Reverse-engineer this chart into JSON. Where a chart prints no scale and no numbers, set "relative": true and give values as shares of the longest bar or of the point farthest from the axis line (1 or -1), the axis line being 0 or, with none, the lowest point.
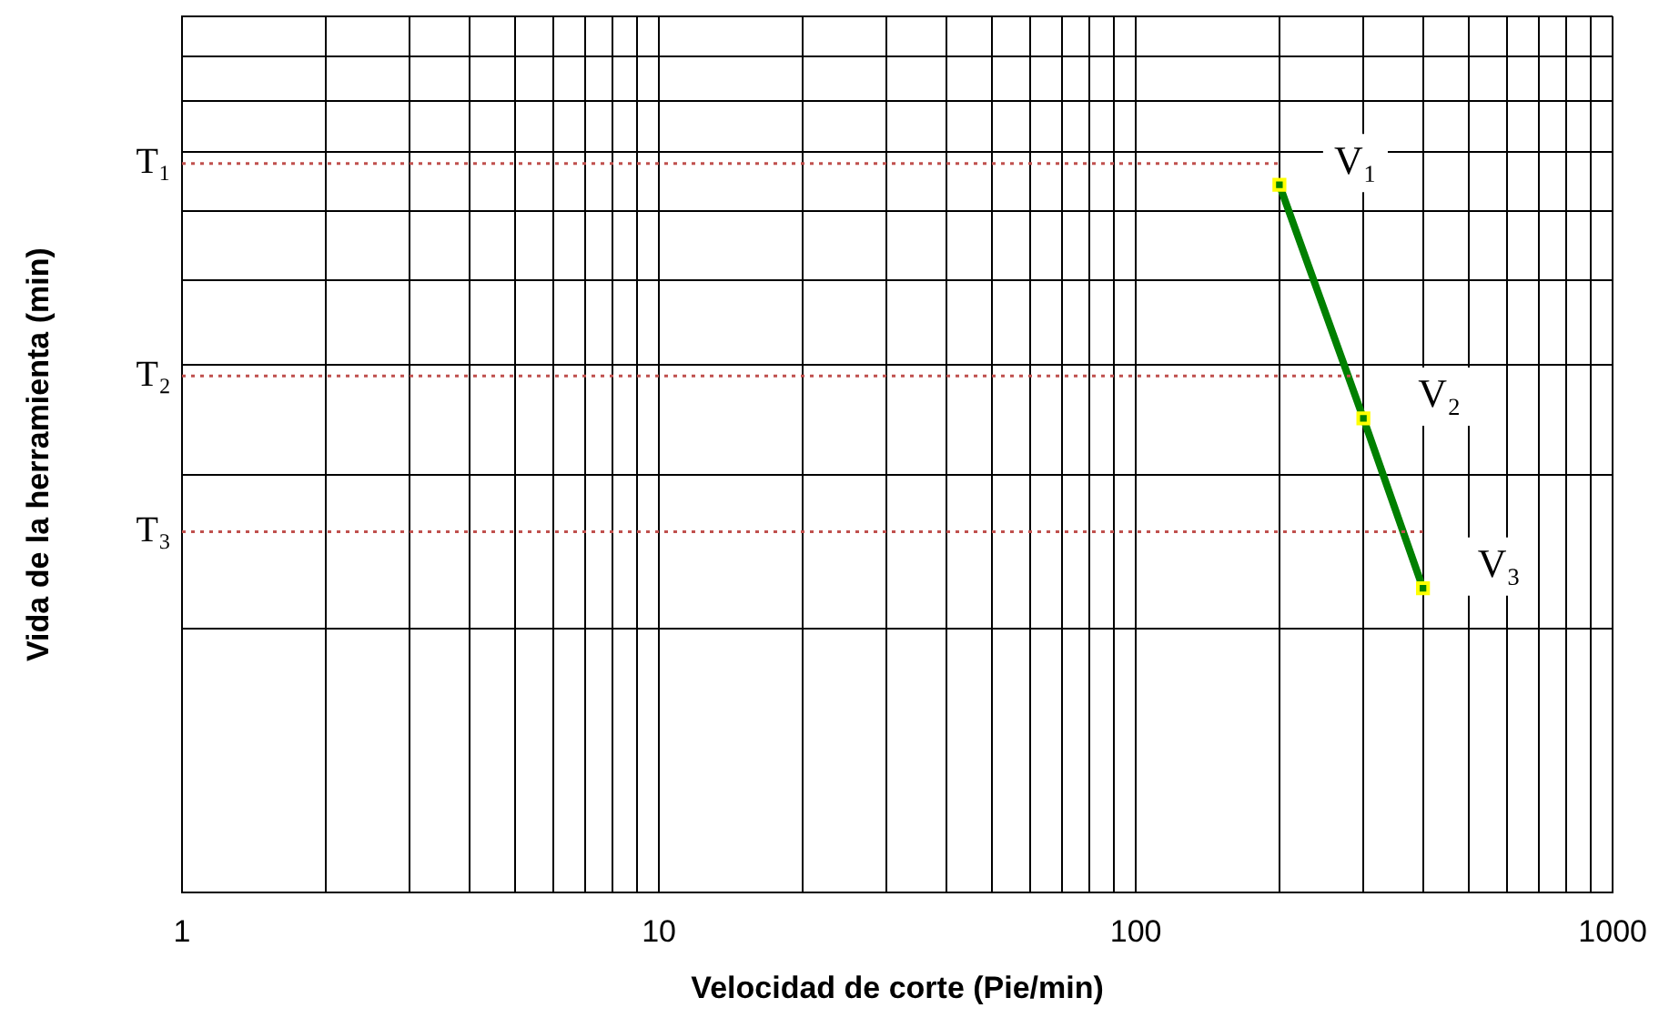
{
  "chart_data": {
    "type": "line",
    "xlabel": "Velocidad de corte (Pie/min)",
    "ylabel": "Vida de la herramienta (min)",
    "log": "x",
    "relative": true,
    "x": [
      200,
      300,
      400
    ],
    "series": [
      {
        "color": "#008000",
        "values": [
          1,
          0.67,
          0.43
        ]
      }
    ],
    "xlim": [
      1,
      1000
    ],
    "xticks": [
      1,
      {
        "value": 2,
        "label": null
      },
      {
        "value": 3,
        "label": null
      },
      {
        "value": 4,
        "label": null
      },
      {
        "value": 5,
        "label": null
      },
      {
        "value": 6,
        "label": null
      },
      {
        "value": 7,
        "label": null
      },
      {
        "value": 8,
        "label": null
      },
      {
        "value": 9,
        "label": null
      },
      10,
      {
        "value": 20,
        "label": null
      },
      {
        "value": 30,
        "label": null
      },
      {
        "value": 40,
        "label": null
      },
      {
        "value": 50,
        "label": null
      },
      {
        "value": 60,
        "label": null
      },
      {
        "value": 70,
        "label": null
      },
      {
        "value": 80,
        "label": null
      },
      {
        "value": 90,
        "label": null
      },
      100,
      {
        "value": 200,
        "label": null
      },
      {
        "value": 300,
        "label": null
      },
      {
        "value": 400,
        "label": null
      },
      {
        "value": 500,
        "label": null
      },
      {
        "value": 600,
        "label": null
      },
      {
        "value": 700,
        "label": null
      },
      {
        "value": 800,
        "label": null
      },
      {
        "value": 900,
        "label": null
      },
      1000
    ],
    "ref_lines": [
      {
        "axis": "y",
        "value": 1.03,
        "label": "T₁",
        "color": "#c0504d",
        "line_style": "dotted"
      },
      {
        "axis": "y",
        "value": 0.73,
        "label": "T₂",
        "color": "#c0504d",
        "line_style": "dotted"
      },
      {
        "axis": "y",
        "value": 0.51,
        "label": "T₃",
        "color": "#c0504d",
        "line_style": "dotted"
      }
    ],
    "annotations": [
      {
        "text": "V₁",
        "x": 200,
        "y": 1
      },
      {
        "text": "V₂",
        "x": 300,
        "y": 0.67
      },
      {
        "text": "V₃",
        "x": 400,
        "y": 0.43
      }
    ],
    "grid": true,
    "legend": false,
    "marker": "square",
    "line_style": "solid"
  }
}
